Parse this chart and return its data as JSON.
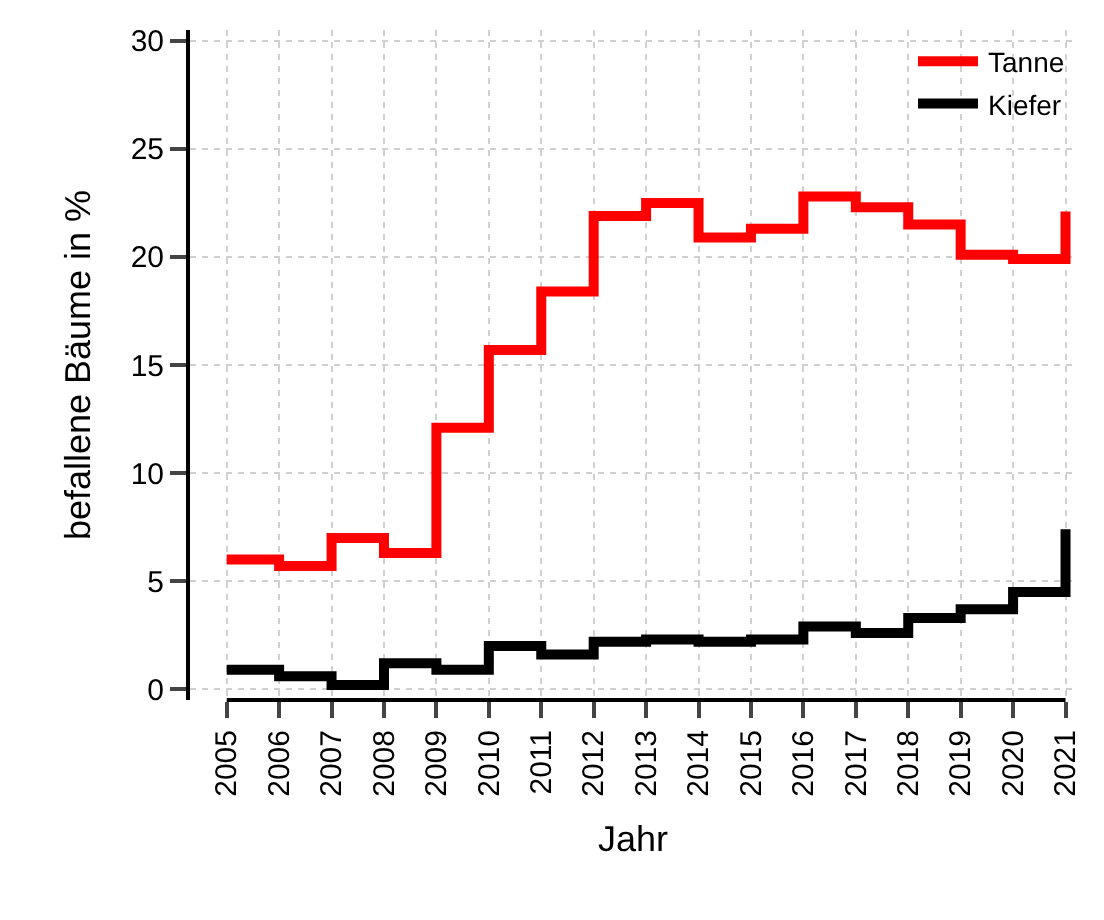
{
  "chart_data": {
    "type": "step",
    "xlabel": "Jahr",
    "ylabel": "befallene Bäume in %",
    "x": [
      2005,
      2006,
      2007,
      2008,
      2009,
      2010,
      2011,
      2012,
      2013,
      2014,
      2015,
      2016,
      2017,
      2018,
      2019,
      2020,
      2021
    ],
    "series": [
      {
        "name": "Tanne",
        "color": "#ff0000",
        "values": [
          6.0,
          5.7,
          7.0,
          6.3,
          12.1,
          15.7,
          18.4,
          21.9,
          22.5,
          20.9,
          21.3,
          22.8,
          22.3,
          21.5,
          20.1,
          19.9,
          22.1
        ]
      },
      {
        "name": "Kiefer",
        "color": "#000000",
        "values": [
          0.9,
          0.6,
          0.2,
          1.2,
          0.9,
          2.0,
          1.6,
          2.2,
          2.3,
          2.2,
          2.3,
          2.9,
          2.6,
          3.3,
          3.7,
          4.5,
          7.4
        ]
      }
    ],
    "xlim": [
      2004.3,
      2021.2
    ],
    "xticks": [
      2005,
      2006,
      2007,
      2008,
      2009,
      2010,
      2011,
      2012,
      2013,
      2014,
      2015,
      2016,
      2017,
      2018,
      2019,
      2020,
      2021
    ],
    "ylim": [
      -0.5,
      30.5
    ],
    "yticks": [
      0,
      5,
      10,
      15,
      20,
      25,
      30
    ],
    "grid": true,
    "legend": "top right",
    "line_style": "solid",
    "marker": "none"
  }
}
